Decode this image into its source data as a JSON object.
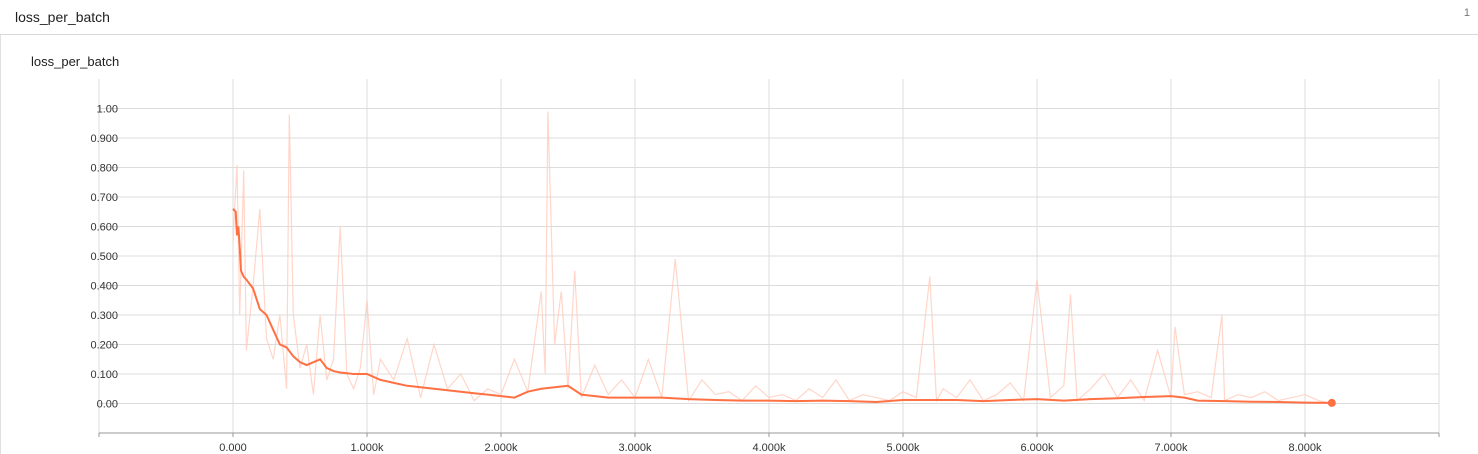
{
  "header": {
    "title": "loss_per_batch",
    "count": "1"
  },
  "colors": {
    "line": "#ff7043",
    "raw_line": "#ffccbc",
    "grid": "#dcdcdc",
    "axis": "#999999"
  },
  "chart_data": {
    "type": "line",
    "title": "loss_per_batch",
    "xlabel": "",
    "ylabel": "",
    "xlim": [
      -1000,
      9000
    ],
    "ylim": [
      -0.1,
      1.1
    ],
    "grid": true,
    "x_ticks": [
      0,
      1000,
      2000,
      3000,
      4000,
      5000,
      6000,
      7000,
      8000
    ],
    "x_tick_labels": [
      "0.000",
      "1.000k",
      "2.000k",
      "3.000k",
      "4.000k",
      "5.000k",
      "6.000k",
      "7.000k",
      "8.000k"
    ],
    "y_ticks": [
      0,
      0.1,
      0.2,
      0.3,
      0.4,
      0.5,
      0.6,
      0.7,
      0.8,
      0.9,
      1.0
    ],
    "y_tick_labels": [
      "0.00",
      "0.100",
      "0.200",
      "0.300",
      "0.400",
      "0.500",
      "0.600",
      "0.700",
      "0.800",
      "0.900",
      "1.00"
    ],
    "series": [
      {
        "role": "raw",
        "x": [
          0,
          30,
          50,
          80,
          100,
          150,
          200,
          250,
          300,
          350,
          400,
          420,
          450,
          500,
          550,
          600,
          650,
          700,
          750,
          800,
          850,
          900,
          950,
          1000,
          1050,
          1100,
          1200,
          1300,
          1400,
          1500,
          1600,
          1700,
          1800,
          1900,
          2000,
          2100,
          2200,
          2300,
          2330,
          2350,
          2400,
          2450,
          2500,
          2550,
          2600,
          2700,
          2800,
          2900,
          3000,
          3100,
          3200,
          3300,
          3400,
          3500,
          3600,
          3700,
          3800,
          3900,
          4000,
          4100,
          4200,
          4300,
          4400,
          4500,
          4600,
          4700,
          4800,
          4900,
          5000,
          5100,
          5200,
          5250,
          5300,
          5400,
          5500,
          5600,
          5700,
          5800,
          5900,
          6000,
          6100,
          6200,
          6250,
          6300,
          6400,
          6500,
          6600,
          6700,
          6800,
          6900,
          7000,
          7030,
          7100,
          7200,
          7300,
          7380,
          7400,
          7500,
          7600,
          7700,
          7800,
          7900,
          8000,
          8100,
          8200
        ],
        "y": [
          0.55,
          0.81,
          0.3,
          0.79,
          0.18,
          0.4,
          0.66,
          0.22,
          0.15,
          0.3,
          0.05,
          0.98,
          0.3,
          0.12,
          0.2,
          0.03,
          0.3,
          0.08,
          0.15,
          0.6,
          0.1,
          0.05,
          0.12,
          0.35,
          0.03,
          0.15,
          0.08,
          0.22,
          0.02,
          0.2,
          0.05,
          0.1,
          0.01,
          0.05,
          0.03,
          0.15,
          0.04,
          0.38,
          0.1,
          0.99,
          0.2,
          0.38,
          0.05,
          0.45,
          0.02,
          0.13,
          0.03,
          0.08,
          0.02,
          0.15,
          0.02,
          0.49,
          0.01,
          0.08,
          0.03,
          0.04,
          0.01,
          0.06,
          0.02,
          0.03,
          0.01,
          0.05,
          0.02,
          0.08,
          0.01,
          0.03,
          0.02,
          0.01,
          0.04,
          0.02,
          0.43,
          0.01,
          0.05,
          0.02,
          0.08,
          0.01,
          0.03,
          0.07,
          0.01,
          0.42,
          0.02,
          0.06,
          0.37,
          0.01,
          0.05,
          0.1,
          0.02,
          0.08,
          0.01,
          0.18,
          0.02,
          0.26,
          0.03,
          0.04,
          0.02,
          0.3,
          0.01,
          0.03,
          0.02,
          0.04,
          0.01,
          0.02,
          0.03,
          0.01,
          0.0
        ]
      },
      {
        "role": "smoothed",
        "x": [
          0,
          20,
          30,
          40,
          50,
          60,
          80,
          100,
          150,
          200,
          250,
          300,
          350,
          400,
          450,
          500,
          550,
          600,
          650,
          700,
          750,
          800,
          900,
          1000,
          1100,
          1200,
          1300,
          1400,
          1500,
          1600,
          1700,
          1800,
          1900,
          2000,
          2100,
          2200,
          2300,
          2400,
          2500,
          2600,
          2700,
          2800,
          2900,
          3000,
          3200,
          3400,
          3600,
          3800,
          4000,
          4200,
          4400,
          4600,
          4800,
          5000,
          5200,
          5400,
          5600,
          5800,
          6000,
          6200,
          6400,
          6600,
          6800,
          7000,
          7100,
          7200,
          7400,
          7600,
          7800,
          8000,
          8200
        ],
        "y": [
          0.66,
          0.65,
          0.57,
          0.6,
          0.53,
          0.45,
          0.43,
          0.42,
          0.39,
          0.32,
          0.3,
          0.25,
          0.2,
          0.19,
          0.16,
          0.14,
          0.13,
          0.14,
          0.15,
          0.12,
          0.11,
          0.105,
          0.1,
          0.1,
          0.08,
          0.07,
          0.06,
          0.055,
          0.05,
          0.045,
          0.04,
          0.035,
          0.03,
          0.025,
          0.02,
          0.04,
          0.05,
          0.055,
          0.06,
          0.03,
          0.025,
          0.02,
          0.02,
          0.02,
          0.02,
          0.015,
          0.012,
          0.01,
          0.01,
          0.008,
          0.01,
          0.008,
          0.005,
          0.012,
          0.012,
          0.012,
          0.008,
          0.012,
          0.015,
          0.01,
          0.015,
          0.018,
          0.022,
          0.025,
          0.02,
          0.01,
          0.008,
          0.006,
          0.005,
          0.003,
          0.002
        ]
      }
    ]
  }
}
